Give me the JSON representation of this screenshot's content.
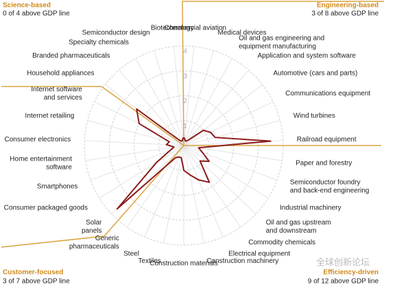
{
  "chart_data": {
    "type": "radar",
    "categories": [
      "Commercial aviation",
      "Medical devices",
      [
        "Oil and gas engineering and",
        "equipment manufacturing"
      ],
      "Application and system software",
      "Automotive (cars and parts)",
      "Communications equipment",
      "Wind turbines",
      "Railroad equipment",
      "Paper and forestry",
      [
        "Semiconductor foundry",
        "and back-end engineering"
      ],
      "Industrial machinery",
      [
        "Oil and gas upstream",
        "and downstream"
      ],
      "Commodity chemicals",
      "Electrical equipment",
      "Construction machinery",
      "Construction materials",
      "Textiles",
      "Steel",
      [
        "Generic",
        "pharmaceuticals"
      ],
      [
        "Solar",
        "panels"
      ],
      "Consumer packaged goods",
      "Smartphones",
      [
        "Home entertainment",
        "software"
      ],
      "Consumer electronics",
      "Internet retailing",
      [
        "Internet software",
        "and services"
      ],
      "Household appliances",
      "Branded pharmaceuticals",
      "Specialty chemicals",
      "Semiconductor design",
      "Biotechnology"
    ],
    "series": [
      {
        "color": "#8b1a1a",
        "values": [
          0.3,
          0.2,
          0.2,
          0.3,
          1.0,
          1.2,
          1.3,
          3.5,
          0.6,
          0.8,
          1.2,
          0.9,
          1.8,
          1.5,
          1.2,
          1.0,
          0.5,
          0.5,
          0.6,
          3.7,
          1.3,
          0.6,
          0.4,
          0.7,
          0.6,
          2.0,
          2.4,
          0.3,
          0.2,
          0.2,
          0.3
        ]
      }
    ],
    "rlim": [
      0,
      4
    ],
    "rticks": [
      1,
      2,
      3,
      4
    ],
    "groups": [
      {
        "name": "Science-based",
        "note": "0 of 4 above GDP line"
      },
      {
        "name": "Engineering-based",
        "note": "3 of 8 above GDP line"
      },
      {
        "name": "Customer-focused",
        "note": "3 of 7 above GDP line"
      },
      {
        "name": "Efficiency-driven",
        "note": "9 of 12 above GDP line"
      }
    ],
    "watermark": "全球创新论坛"
  }
}
